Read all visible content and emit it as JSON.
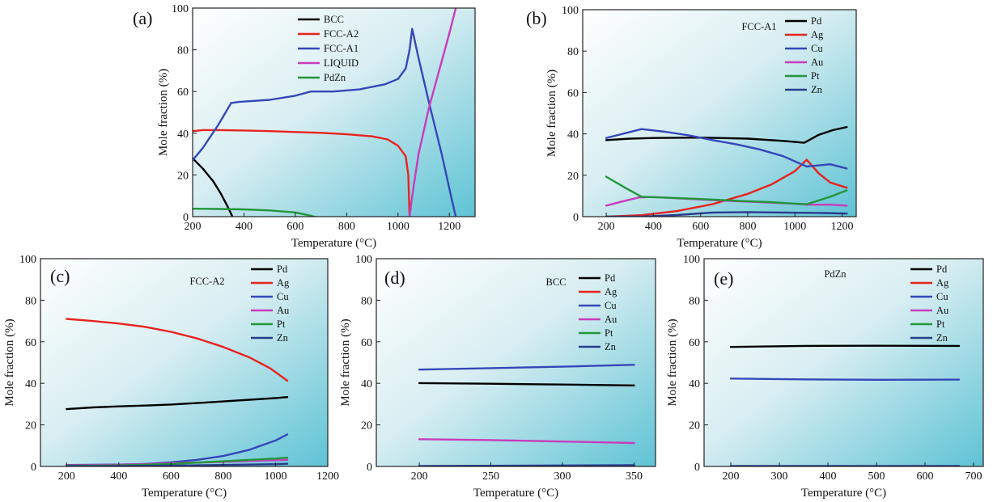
{
  "chart_data": [
    {
      "panel": "(a)",
      "type": "line",
      "xlabel": "Temperature (°C)",
      "ylabel": "Mole fraction (%)",
      "xlim": [
        200,
        1300
      ],
      "ylim": [
        0,
        100
      ],
      "xticks": [
        200,
        400,
        600,
        800,
        1000,
        1200
      ],
      "yticks": [
        0,
        20,
        40,
        60,
        80,
        100
      ],
      "legend": "top-right",
      "series": [
        {
          "name": "BCC",
          "color": "#000000",
          "points": [
            [
              200,
              28
            ],
            [
              240,
              23
            ],
            [
              280,
              17
            ],
            [
              310,
              11
            ],
            [
              340,
              4
            ],
            [
              355,
              0
            ]
          ]
        },
        {
          "name": "FCC-A2",
          "color": "#e8231f",
          "points": [
            [
              200,
              41
            ],
            [
              240,
              41.5
            ],
            [
              300,
              41.5
            ],
            [
              400,
              41.3
            ],
            [
              500,
              41
            ],
            [
              600,
              40.6
            ],
            [
              700,
              40.2
            ],
            [
              800,
              39.5
            ],
            [
              900,
              38.5
            ],
            [
              960,
              37
            ],
            [
              1000,
              34
            ],
            [
              1030,
              29
            ],
            [
              1040,
              20
            ],
            [
              1045,
              0
            ]
          ]
        },
        {
          "name": "FCC-A1",
          "color": "#3547b8",
          "points": [
            [
              200,
              27
            ],
            [
              240,
              33
            ],
            [
              300,
              44
            ],
            [
              350,
              54.5
            ],
            [
              380,
              55
            ],
            [
              500,
              56
            ],
            [
              600,
              58
            ],
            [
              660,
              60
            ],
            [
              750,
              60
            ],
            [
              850,
              61
            ],
            [
              950,
              63.5
            ],
            [
              1000,
              66
            ],
            [
              1030,
              71
            ],
            [
              1045,
              80
            ],
            [
              1055,
              90
            ],
            [
              1080,
              76
            ],
            [
              1120,
              55
            ],
            [
              1170,
              30
            ],
            [
              1210,
              8
            ],
            [
              1225,
              0
            ]
          ]
        },
        {
          "name": "LIQUID",
          "color": "#c83cbc",
          "points": [
            [
              1045,
              0
            ],
            [
              1050,
              5
            ],
            [
              1060,
              14
            ],
            [
              1080,
              30
            ],
            [
              1120,
              52
            ],
            [
              1160,
              70
            ],
            [
              1200,
              88
            ],
            [
              1225,
              100
            ]
          ]
        },
        {
          "name": "PdZn",
          "color": "#23963a",
          "points": [
            [
              200,
              3.8
            ],
            [
              300,
              3.7
            ],
            [
              400,
              3.5
            ],
            [
              500,
              3
            ],
            [
              600,
              2
            ],
            [
              640,
              1
            ],
            [
              675,
              0
            ]
          ]
        }
      ]
    },
    {
      "panel": "(b)",
      "phase": "FCC-A1",
      "type": "line",
      "xlabel": "Temperature (°C)",
      "ylabel": "Mole fraction (%)",
      "xlim": [
        100,
        1260
      ],
      "ylim": [
        0,
        100
      ],
      "xticks": [
        200,
        400,
        600,
        800,
        1000,
        1200
      ],
      "yticks": [
        0,
        20,
        40,
        60,
        80,
        100
      ],
      "legend": "top-right",
      "series": [
        {
          "name": "Pd",
          "color": "#000000",
          "points": [
            [
              200,
              37
            ],
            [
              300,
              37.7
            ],
            [
              400,
              38
            ],
            [
              600,
              38.2
            ],
            [
              800,
              37.7
            ],
            [
              950,
              36.6
            ],
            [
              1040,
              35.7
            ],
            [
              1100,
              39.5
            ],
            [
              1160,
              41.8
            ],
            [
              1220,
              43.3
            ]
          ]
        },
        {
          "name": "Ag",
          "color": "#e8231f",
          "points": [
            [
              200,
              0
            ],
            [
              350,
              0.7
            ],
            [
              500,
              2.7
            ],
            [
              650,
              6
            ],
            [
              800,
              11
            ],
            [
              900,
              15.5
            ],
            [
              1000,
              22
            ],
            [
              1050,
              27.5
            ],
            [
              1100,
              21
            ],
            [
              1150,
              16.5
            ],
            [
              1220,
              14
            ]
          ]
        },
        {
          "name": "Cu",
          "color": "#3547b8",
          "points": [
            [
              200,
              38
            ],
            [
              280,
              40.3
            ],
            [
              350,
              42.3
            ],
            [
              450,
              41
            ],
            [
              550,
              39.3
            ],
            [
              650,
              37
            ],
            [
              750,
              35
            ],
            [
              850,
              32.5
            ],
            [
              950,
              29.2
            ],
            [
              1050,
              24.2
            ],
            [
              1150,
              25.3
            ],
            [
              1220,
              23.3
            ]
          ]
        },
        {
          "name": "Au",
          "color": "#c83cbc",
          "points": [
            [
              200,
              5.3
            ],
            [
              280,
              7.7
            ],
            [
              340,
              9.3
            ],
            [
              400,
              9.5
            ],
            [
              550,
              8.6
            ],
            [
              700,
              7.7
            ],
            [
              850,
              7
            ],
            [
              1000,
              6.2
            ],
            [
              1050,
              5.8
            ],
            [
              1150,
              5.8
            ],
            [
              1220,
              5.3
            ]
          ]
        },
        {
          "name": "Pt",
          "color": "#23963a",
          "points": [
            [
              200,
              19.3
            ],
            [
              280,
              14
            ],
            [
              350,
              9.6
            ],
            [
              450,
              9.2
            ],
            [
              600,
              8.5
            ],
            [
              750,
              7.7
            ],
            [
              900,
              7
            ],
            [
              1000,
              6.3
            ],
            [
              1050,
              6
            ],
            [
              1150,
              9.6
            ],
            [
              1220,
              12.7
            ]
          ]
        },
        {
          "name": "Zn",
          "color": "#283c8c",
          "points": [
            [
              200,
              0
            ],
            [
              350,
              0
            ],
            [
              500,
              0.8
            ],
            [
              650,
              2
            ],
            [
              800,
              2.2
            ],
            [
              950,
              2
            ],
            [
              1100,
              1.8
            ],
            [
              1220,
              1.5
            ]
          ]
        }
      ]
    },
    {
      "panel": "(c)",
      "phase": "FCC-A2",
      "type": "line",
      "xlabel": "Temperature (°C)",
      "ylabel": "Mole fraction (%)",
      "xlim": [
        100,
        1200
      ],
      "ylim": [
        0,
        100
      ],
      "xticks": [
        200,
        400,
        600,
        800,
        1000,
        1200
      ],
      "yticks": [
        0,
        20,
        40,
        60,
        80,
        100
      ],
      "legend": "top-right",
      "series": [
        {
          "name": "Pd",
          "color": "#000000",
          "points": [
            [
              200,
              27.6
            ],
            [
              300,
              28.4
            ],
            [
              400,
              28.9
            ],
            [
              500,
              29.3
            ],
            [
              600,
              29.8
            ],
            [
              700,
              30.5
            ],
            [
              800,
              31.3
            ],
            [
              900,
              32.1
            ],
            [
              1000,
              32.9
            ],
            [
              1045,
              33.4
            ]
          ]
        },
        {
          "name": "Ag",
          "color": "#e8231f",
          "points": [
            [
              200,
              71
            ],
            [
              300,
              70
            ],
            [
              400,
              68.8
            ],
            [
              500,
              67.2
            ],
            [
              600,
              64.8
            ],
            [
              700,
              61.6
            ],
            [
              800,
              57.5
            ],
            [
              900,
              52.5
            ],
            [
              980,
              47.2
            ],
            [
              1045,
              41.3
            ]
          ]
        },
        {
          "name": "Cu",
          "color": "#3547b8",
          "points": [
            [
              200,
              0.7
            ],
            [
              400,
              0.9
            ],
            [
              500,
              1.2
            ],
            [
              600,
              2
            ],
            [
              700,
              3.2
            ],
            [
              800,
              5
            ],
            [
              900,
              8
            ],
            [
              1000,
              12.5
            ],
            [
              1045,
              15.4
            ]
          ]
        },
        {
          "name": "Au",
          "color": "#c83cbc",
          "points": [
            [
              200,
              0.5
            ],
            [
              400,
              0.8
            ],
            [
              600,
              1.5
            ],
            [
              800,
              2.2
            ],
            [
              1000,
              3
            ],
            [
              1045,
              3.2
            ]
          ]
        },
        {
          "name": "Pt",
          "color": "#23963a",
          "points": [
            [
              200,
              0.3
            ],
            [
              400,
              0.5
            ],
            [
              600,
              1.2
            ],
            [
              800,
              2.5
            ],
            [
              1000,
              3.8
            ],
            [
              1045,
              4.2
            ]
          ]
        },
        {
          "name": "Zn",
          "color": "#283c8c",
          "points": [
            [
              200,
              0.1
            ],
            [
              400,
              0.2
            ],
            [
              600,
              0.4
            ],
            [
              800,
              0.7
            ],
            [
              1000,
              1.1
            ],
            [
              1045,
              1.3
            ]
          ]
        }
      ]
    },
    {
      "panel": "(d)",
      "phase": "BCC",
      "type": "line",
      "xlabel": "Temperature (°C)",
      "ylabel": "Mole fraction (%)",
      "xlim": [
        170,
        365
      ],
      "ylim": [
        0,
        100
      ],
      "xticks": [
        200,
        250,
        300,
        350
      ],
      "yticks": [
        0,
        20,
        40,
        60,
        80,
        100
      ],
      "legend": "top-right",
      "series": [
        {
          "name": "Pd",
          "color": "#000000",
          "points": [
            [
              200,
              40.1
            ],
            [
              250,
              39.8
            ],
            [
              300,
              39.4
            ],
            [
              350,
              39
            ]
          ]
        },
        {
          "name": "Ag",
          "color": "#e8231f",
          "points": [
            [
              200,
              0
            ],
            [
              350,
              0
            ]
          ]
        },
        {
          "name": "Cu",
          "color": "#3547b8",
          "points": [
            [
              200,
              46.6
            ],
            [
              250,
              47.3
            ],
            [
              300,
              48
            ],
            [
              350,
              48.9
            ]
          ]
        },
        {
          "name": "Au",
          "color": "#c83cbc",
          "points": [
            [
              200,
              13.1
            ],
            [
              250,
              12.7
            ],
            [
              300,
              12
            ],
            [
              350,
              11.3
            ]
          ]
        },
        {
          "name": "Pt",
          "color": "#23963a",
          "points": [
            [
              200,
              0
            ],
            [
              350,
              0
            ]
          ]
        },
        {
          "name": "Zn",
          "color": "#283c8c",
          "points": [
            [
              200,
              0.2
            ],
            [
              350,
              0.6
            ]
          ]
        }
      ]
    },
    {
      "panel": "(e)",
      "phase": "PdZn",
      "type": "line",
      "xlabel": "Temperature (°C)",
      "ylabel": "Mole fraction (%)",
      "xlim": [
        145,
        720
      ],
      "ylim": [
        0,
        100
      ],
      "xticks": [
        200,
        300,
        400,
        500,
        600,
        700
      ],
      "yticks": [
        0,
        20,
        40,
        60,
        80,
        100
      ],
      "legend": "top-right",
      "series": [
        {
          "name": "Pd",
          "color": "#000000",
          "points": [
            [
              200,
              57.5
            ],
            [
              350,
              58
            ],
            [
              500,
              58.1
            ],
            [
              670,
              58
            ]
          ]
        },
        {
          "name": "Ag",
          "color": "#e8231f",
          "points": [
            [
              200,
              0
            ],
            [
              670,
              0
            ]
          ]
        },
        {
          "name": "Cu",
          "color": "#3547b8",
          "points": [
            [
              200,
              42.3
            ],
            [
              350,
              41.9
            ],
            [
              500,
              41.7
            ],
            [
              670,
              41.8
            ]
          ]
        },
        {
          "name": "Au",
          "color": "#c83cbc",
          "points": [
            [
              200,
              0
            ],
            [
              670,
              0
            ]
          ]
        },
        {
          "name": "Pt",
          "color": "#23963a",
          "points": [
            [
              200,
              0
            ],
            [
              670,
              0
            ]
          ]
        },
        {
          "name": "Zn",
          "color": "#283c8c",
          "points": [
            [
              200,
              0.2
            ],
            [
              670,
              0.2
            ]
          ]
        }
      ]
    }
  ]
}
